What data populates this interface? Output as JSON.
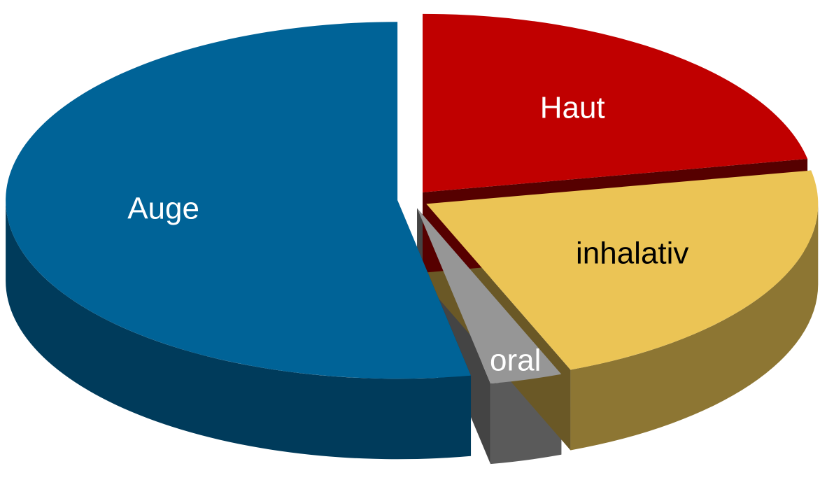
{
  "chart_data": {
    "type": "pie",
    "categories": [
      "Haut",
      "inhalativ",
      "oral",
      "Auge"
    ],
    "values": [
      22,
      22,
      3,
      53
    ],
    "colors": [
      "#c00000",
      "#ebc455",
      "#969696",
      "#006397"
    ],
    "label_colors": [
      "#ffffff",
      "#000000",
      "#ffffff",
      "#ffffff"
    ]
  }
}
